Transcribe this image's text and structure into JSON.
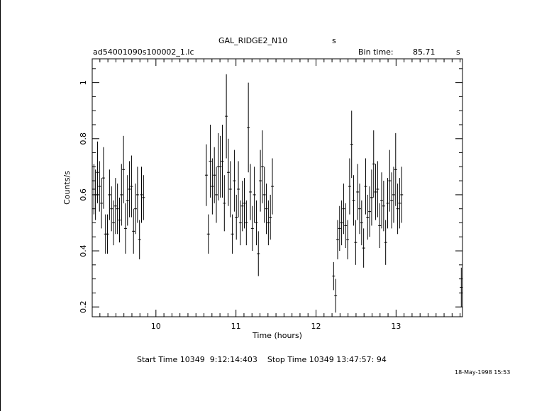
{
  "header": {
    "object": "GAL_RIDGE2_N10",
    "object_suffix": "s",
    "filename": "ad54001090s100002_1.lc",
    "bin_label": "Bin time:",
    "bin_value": "85.71",
    "bin_unit": "s"
  },
  "footer": {
    "times": "Start Time 10349  9:12:14:403    Stop Time 10349 13:47:57: 94",
    "date": "18-May-1998 15:53"
  },
  "chart_data": {
    "type": "scatter",
    "xlabel": "Time (hours)",
    "ylabel": "Counts/s",
    "xlim": [
      9.204,
      13.83
    ],
    "ylim": [
      0.165,
      1.085
    ],
    "xticks": [
      10,
      11,
      12,
      13
    ],
    "yticks": [
      0.2,
      0.4,
      0.6,
      0.8,
      1
    ],
    "grid": false,
    "error_bars": true,
    "points": [
      {
        "x": 9.225,
        "y": 0.62,
        "err": 0.09
      },
      {
        "x": 9.245,
        "y": 0.6,
        "err": 0.09
      },
      {
        "x": 9.27,
        "y": 0.68,
        "err": 0.11
      },
      {
        "x": 9.295,
        "y": 0.63,
        "err": 0.09
      },
      {
        "x": 9.32,
        "y": 0.57,
        "err": 0.09
      },
      {
        "x": 9.345,
        "y": 0.66,
        "err": 0.11
      },
      {
        "x": 9.37,
        "y": 0.46,
        "err": 0.07
      },
      {
        "x": 9.395,
        "y": 0.46,
        "err": 0.07
      },
      {
        "x": 9.42,
        "y": 0.6,
        "err": 0.09
      },
      {
        "x": 9.445,
        "y": 0.55,
        "err": 0.08
      },
      {
        "x": 9.47,
        "y": 0.5,
        "err": 0.08
      },
      {
        "x": 9.495,
        "y": 0.56,
        "err": 0.1
      },
      {
        "x": 9.52,
        "y": 0.55,
        "err": 0.09
      },
      {
        "x": 9.545,
        "y": 0.51,
        "err": 0.08
      },
      {
        "x": 9.57,
        "y": 0.6,
        "err": 0.11
      },
      {
        "x": 9.595,
        "y": 0.69,
        "err": 0.12
      },
      {
        "x": 9.62,
        "y": 0.48,
        "err": 0.09
      },
      {
        "x": 9.645,
        "y": 0.58,
        "err": 0.09
      },
      {
        "x": 9.67,
        "y": 0.62,
        "err": 0.1
      },
      {
        "x": 9.695,
        "y": 0.63,
        "err": 0.11
      },
      {
        "x": 9.72,
        "y": 0.47,
        "err": 0.08
      },
      {
        "x": 9.745,
        "y": 0.55,
        "err": 0.09
      },
      {
        "x": 9.77,
        "y": 0.6,
        "err": 0.1
      },
      {
        "x": 9.795,
        "y": 0.44,
        "err": 0.07
      },
      {
        "x": 9.82,
        "y": 0.6,
        "err": 0.1
      },
      {
        "x": 9.845,
        "y": 0.59,
        "err": 0.08
      },
      {
        "x": 10.63,
        "y": 0.67,
        "err": 0.11
      },
      {
        "x": 10.655,
        "y": 0.46,
        "err": 0.07
      },
      {
        "x": 10.68,
        "y": 0.72,
        "err": 0.13
      },
      {
        "x": 10.705,
        "y": 0.63,
        "err": 0.1
      },
      {
        "x": 10.73,
        "y": 0.67,
        "err": 0.1
      },
      {
        "x": 10.755,
        "y": 0.6,
        "err": 0.1
      },
      {
        "x": 10.78,
        "y": 0.7,
        "err": 0.12
      },
      {
        "x": 10.805,
        "y": 0.7,
        "err": 0.11
      },
      {
        "x": 10.83,
        "y": 0.72,
        "err": 0.13
      },
      {
        "x": 10.855,
        "y": 0.57,
        "err": 0.1
      },
      {
        "x": 10.88,
        "y": 0.88,
        "err": 0.15
      },
      {
        "x": 10.905,
        "y": 0.68,
        "err": 0.12
      },
      {
        "x": 10.93,
        "y": 0.62,
        "err": 0.1
      },
      {
        "x": 10.955,
        "y": 0.46,
        "err": 0.07
      },
      {
        "x": 10.98,
        "y": 0.65,
        "err": 0.11
      },
      {
        "x": 11.005,
        "y": 0.52,
        "err": 0.08
      },
      {
        "x": 11.03,
        "y": 0.62,
        "err": 0.1
      },
      {
        "x": 11.055,
        "y": 0.5,
        "err": 0.08
      },
      {
        "x": 11.08,
        "y": 0.56,
        "err": 0.09
      },
      {
        "x": 11.105,
        "y": 0.57,
        "err": 0.09
      },
      {
        "x": 11.13,
        "y": 0.5,
        "err": 0.08
      },
      {
        "x": 11.155,
        "y": 0.84,
        "err": 0.16
      },
      {
        "x": 11.18,
        "y": 0.61,
        "err": 0.1
      },
      {
        "x": 11.205,
        "y": 0.48,
        "err": 0.08
      },
      {
        "x": 11.23,
        "y": 0.6,
        "err": 0.1
      },
      {
        "x": 11.255,
        "y": 0.5,
        "err": 0.08
      },
      {
        "x": 11.28,
        "y": 0.39,
        "err": 0.08
      },
      {
        "x": 11.305,
        "y": 0.65,
        "err": 0.11
      },
      {
        "x": 11.33,
        "y": 0.7,
        "err": 0.13
      },
      {
        "x": 11.355,
        "y": 0.6,
        "err": 0.1
      },
      {
        "x": 11.38,
        "y": 0.55,
        "err": 0.09
      },
      {
        "x": 11.405,
        "y": 0.5,
        "err": 0.08
      },
      {
        "x": 11.43,
        "y": 0.52,
        "err": 0.08
      },
      {
        "x": 11.455,
        "y": 0.63,
        "err": 0.1
      },
      {
        "x": 12.22,
        "y": 0.31,
        "err": 0.05
      },
      {
        "x": 12.245,
        "y": 0.24,
        "err": 0.06
      },
      {
        "x": 12.27,
        "y": 0.44,
        "err": 0.07
      },
      {
        "x": 12.295,
        "y": 0.48,
        "err": 0.08
      },
      {
        "x": 12.32,
        "y": 0.5,
        "err": 0.08
      },
      {
        "x": 12.345,
        "y": 0.55,
        "err": 0.09
      },
      {
        "x": 12.37,
        "y": 0.49,
        "err": 0.08
      },
      {
        "x": 12.395,
        "y": 0.44,
        "err": 0.07
      },
      {
        "x": 12.42,
        "y": 0.63,
        "err": 0.1
      },
      {
        "x": 12.445,
        "y": 0.78,
        "err": 0.12
      },
      {
        "x": 12.47,
        "y": 0.58,
        "err": 0.09
      },
      {
        "x": 12.495,
        "y": 0.43,
        "err": 0.08
      },
      {
        "x": 12.52,
        "y": 0.61,
        "err": 0.1
      },
      {
        "x": 12.545,
        "y": 0.55,
        "err": 0.09
      },
      {
        "x": 12.57,
        "y": 0.5,
        "err": 0.08
      },
      {
        "x": 12.595,
        "y": 0.41,
        "err": 0.07
      },
      {
        "x": 12.62,
        "y": 0.63,
        "err": 0.1
      },
      {
        "x": 12.645,
        "y": 0.52,
        "err": 0.08
      },
      {
        "x": 12.67,
        "y": 0.54,
        "err": 0.09
      },
      {
        "x": 12.695,
        "y": 0.59,
        "err": 0.1
      },
      {
        "x": 12.72,
        "y": 0.71,
        "err": 0.12
      },
      {
        "x": 12.745,
        "y": 0.61,
        "err": 0.1
      },
      {
        "x": 12.77,
        "y": 0.62,
        "err": 0.1
      },
      {
        "x": 12.795,
        "y": 0.49,
        "err": 0.08
      },
      {
        "x": 12.82,
        "y": 0.58,
        "err": 0.1
      },
      {
        "x": 12.845,
        "y": 0.56,
        "err": 0.09
      },
      {
        "x": 12.87,
        "y": 0.43,
        "err": 0.08
      },
      {
        "x": 12.895,
        "y": 0.57,
        "err": 0.09
      },
      {
        "x": 12.92,
        "y": 0.65,
        "err": 0.11
      },
      {
        "x": 12.945,
        "y": 0.58,
        "err": 0.1
      },
      {
        "x": 12.97,
        "y": 0.6,
        "err": 0.1
      },
      {
        "x": 12.995,
        "y": 0.69,
        "err": 0.13
      },
      {
        "x": 13.02,
        "y": 0.55,
        "err": 0.09
      },
      {
        "x": 13.045,
        "y": 0.57,
        "err": 0.09
      },
      {
        "x": 13.07,
        "y": 0.6,
        "err": 0.1
      },
      {
        "x": 13.815,
        "y": 0.27,
        "err": 0.07
      }
    ]
  }
}
